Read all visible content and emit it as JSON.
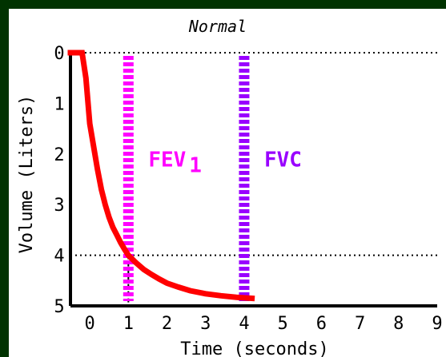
{
  "chart_data": {
    "type": "line",
    "title": "Normal",
    "xlabel": "Time (seconds)",
    "ylabel": "Volume (Liters)",
    "xlim": [
      -0.5,
      9
    ],
    "ylim": [
      0,
      5
    ],
    "y_inverted": true,
    "x_ticks": [
      0,
      1,
      2,
      3,
      4,
      5,
      6,
      7,
      8,
      9
    ],
    "y_ticks": [
      0,
      1,
      2,
      3,
      4,
      5
    ],
    "grid": false,
    "series": [
      {
        "color": "#ff0000",
        "x": [
          -0.5,
          -0.2,
          -0.1,
          0.0,
          0.1,
          0.2,
          0.3,
          0.4,
          0.5,
          0.6,
          0.7,
          0.8,
          0.9,
          1.0,
          1.2,
          1.4,
          1.6,
          1.8,
          2.0,
          2.3,
          2.6,
          3.0,
          3.4,
          3.8,
          4.2
        ],
        "y": [
          0.0,
          0.0,
          0.5,
          1.4,
          1.85,
          2.3,
          2.7,
          3.0,
          3.25,
          3.45,
          3.6,
          3.75,
          3.88,
          4.0,
          4.15,
          4.28,
          4.38,
          4.47,
          4.55,
          4.63,
          4.7,
          4.76,
          4.8,
          4.83,
          4.85
        ]
      }
    ],
    "reference_lines": [
      {
        "orientation": "horizontal",
        "y": 0,
        "style": "dotted"
      },
      {
        "orientation": "horizontal",
        "y": 4,
        "style": "dotted"
      },
      {
        "orientation": "vertical",
        "x": 1,
        "style": "dashed"
      }
    ],
    "markers": [
      {
        "x": 1,
        "label": "FEV",
        "subscript": "1",
        "color": "#ff00ff"
      },
      {
        "x": 4,
        "label": "FVC",
        "color": "#9900ff"
      }
    ]
  }
}
